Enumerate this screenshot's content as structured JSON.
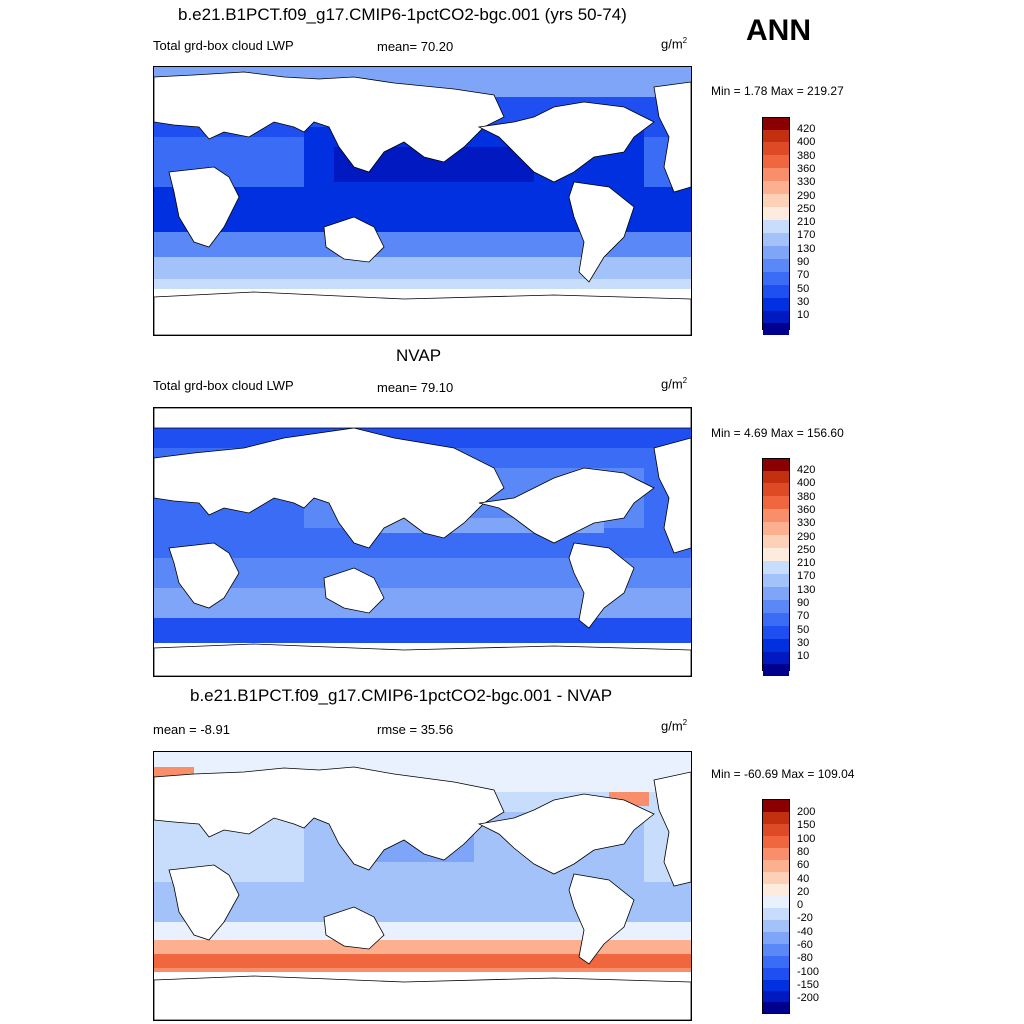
{
  "season": "ANN",
  "colors": {
    "lwp": [
      "#00008F",
      "#0019C0",
      "#0030E0",
      "#1F4FF0",
      "#3B6CF5",
      "#5A88F7",
      "#7EA5F8",
      "#A3C2FA",
      "#C8DDFC",
      "#FDEBDD",
      "#FDD0B8",
      "#FCB090",
      "#F98E6A",
      "#F0663F",
      "#DD4A25",
      "#C2300F",
      "#8A0000"
    ],
    "diff": [
      "#00008F",
      "#0019C0",
      "#0030E0",
      "#1F4FF0",
      "#3B6CF5",
      "#5A88F7",
      "#7EA5F8",
      "#A3C2FA",
      "#C8DDFC",
      "#E9F1FE",
      "#FDEBDD",
      "#FDD0B8",
      "#FCB090",
      "#F98E6A",
      "#F0663F",
      "#DD4A25",
      "#C2300F",
      "#8A0000"
    ],
    "coast": "#000000"
  },
  "panels": [
    {
      "title": "b.e21.B1PCT.f09_g17.CMIP6-1pctCO2-bgc.001 (yrs 50-74)",
      "left": "Total grd-box cloud LWP",
      "center": "mean=  70.20",
      "units": "g/m",
      "units_sup": "2",
      "minmax": "Min =   1.78 Max = 219.27",
      "levels": [
        "420",
        "400",
        "380",
        "360",
        "330",
        "290",
        "250",
        "210",
        "170",
        "130",
        "90",
        "70",
        "50",
        "30",
        "10"
      ]
    },
    {
      "title": "NVAP",
      "left": "Total grd-box cloud LWP",
      "center": "mean=  79.10",
      "units": "g/m",
      "units_sup": "2",
      "minmax": "Min =   4.69 Max = 156.60",
      "levels": [
        "420",
        "400",
        "380",
        "360",
        "330",
        "290",
        "250",
        "210",
        "170",
        "130",
        "90",
        "70",
        "50",
        "30",
        "10"
      ]
    },
    {
      "title": "b.e21.B1PCT.f09_g17.CMIP6-1pctCO2-bgc.001 - NVAP",
      "left": "mean =  -8.91",
      "center": "rmse =  35.56",
      "units": "g/m",
      "units_sup": "2",
      "minmax": "Min = -60.69 Max = 109.04",
      "levels": [
        "200",
        "150",
        "100",
        "80",
        "60",
        "40",
        "20",
        "0",
        "-20",
        "-40",
        "-60",
        "-80",
        "-100",
        "-150",
        "-200"
      ]
    }
  ]
}
